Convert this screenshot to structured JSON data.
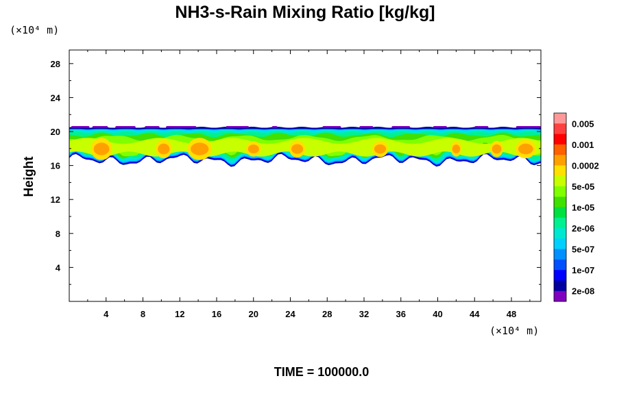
{
  "chart_data": {
    "type": "heatmap",
    "title": "NH3-s-Rain Mixing Ratio [kg/kg]",
    "x_unit": "(×10⁴ m)",
    "y_unit": "(×10⁴ m)",
    "ylabel": "Height",
    "xlim": [
      0,
      51.2
    ],
    "ylim": [
      0,
      29.6
    ],
    "x_ticks": [
      4,
      8,
      12,
      16,
      20,
      24,
      28,
      32,
      36,
      40,
      44,
      48
    ],
    "y_ticks": [
      4,
      8,
      12,
      16,
      20,
      24,
      28
    ],
    "colorbar": {
      "labels": [
        "0.005",
        "0.001",
        "0.0002",
        "5e-05",
        "1e-05",
        "2e-06",
        "5e-07",
        "1e-07",
        "2e-08"
      ],
      "colors": [
        "#ff9999",
        "#ff4040",
        "#ff0000",
        "#ff6000",
        "#ffa000",
        "#ffe000",
        "#c8ff00",
        "#80ff00",
        "#40e000",
        "#00e040",
        "#00f090",
        "#00e8d0",
        "#00d0ff",
        "#0090ff",
        "#0050ff",
        "#0000ff",
        "#0000a0",
        "#8000c0"
      ]
    },
    "field": {
      "layer_bottom_height": 16.8,
      "layer_top_height": 20.4,
      "core_height": 18.0,
      "core_value": "0.0002"
    }
  },
  "footer": {
    "time_label": "TIME = 100000.0"
  }
}
